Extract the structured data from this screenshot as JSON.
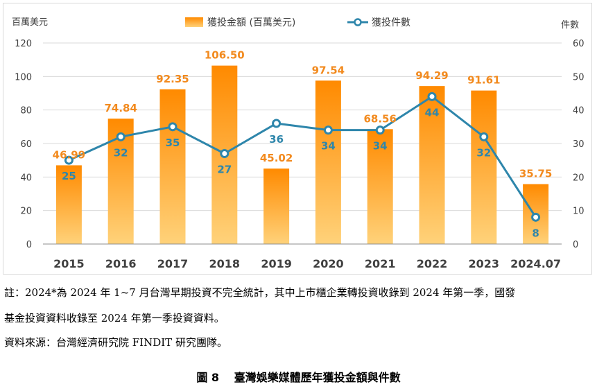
{
  "chart_data": {
    "type": "bar",
    "categories": [
      "2015",
      "2016",
      "2017",
      "2018",
      "2019",
      "2020",
      "2021",
      "2022",
      "2023",
      "2024.07"
    ],
    "series": [
      {
        "name": "獲投金額 (百萬美元)",
        "type": "bar",
        "axis": "left",
        "values": [
          46.99,
          74.84,
          92.35,
          106.5,
          45.02,
          97.54,
          68.56,
          94.29,
          91.61,
          35.75
        ],
        "labels": [
          "46.99",
          "74.84",
          "92.35",
          "106.50",
          "45.02",
          "97.54",
          "68.56",
          "94.29",
          "91.61",
          "35.75"
        ]
      },
      {
        "name": "獲投件數",
        "type": "line",
        "axis": "right",
        "values": [
          25,
          32,
          35,
          27,
          36,
          34,
          34,
          44,
          32,
          8
        ],
        "labels": [
          "25",
          "32",
          "35",
          "27",
          "36",
          "34",
          "34",
          "44",
          "32",
          "8"
        ]
      }
    ],
    "y_left": {
      "label": "百萬美元",
      "range": [
        0,
        120
      ],
      "ticks": [
        "0",
        "20",
        "40",
        "60",
        "80",
        "100",
        "120"
      ]
    },
    "y_right": {
      "label": "件數",
      "range": [
        0,
        60
      ],
      "ticks": [
        "0",
        "10",
        "20",
        "30",
        "40",
        "50",
        "60"
      ]
    },
    "grid": true,
    "legend_position": "top-center",
    "colors": {
      "bar_top": "#FF8A00",
      "bar_bottom": "#FFD27A",
      "line": "#2E86AB",
      "bar_label": "#F28A1E",
      "line_label": "#2E86AB"
    }
  },
  "notes": {
    "line1": "註：2024*為 2024 年 1~7 月台灣早期投資不完全統計，其中上市櫃企業轉投資收錄到 2024 年第一季，國發",
    "line2": "基金投資資料收錄至 2024 年第一季投資資料。",
    "source": "資料來源：台灣經濟研究院 FINDIT 研究團隊。"
  },
  "caption": "圖 8　 臺灣娛樂媒體歷年獲投金額與件數"
}
